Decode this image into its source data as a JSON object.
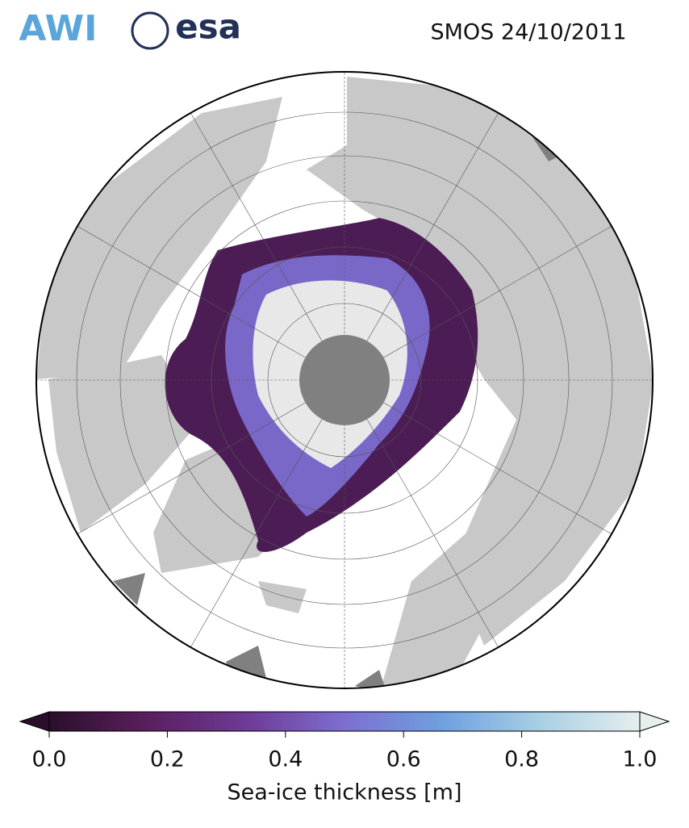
{
  "logos": [
    "AWI",
    "esa"
  ],
  "title": "SMOS 24/10/2011",
  "colorbar": {
    "label": "Sea-ice thickness [m]",
    "clim": [
      0,
      1
    ],
    "ticks": [
      {
        "value": 0,
        "label": "0.0"
      },
      {
        "value": 0.2,
        "label": "0.2"
      },
      {
        "value": 0.4,
        "label": "0.4"
      },
      {
        "value": 0.6,
        "label": "0.6"
      },
      {
        "value": 0.8,
        "label": "0.8"
      },
      {
        "value": 1,
        "label": "1.0"
      }
    ],
    "colormap": [
      "#2a0f2a",
      "#5a1f5e",
      "#6e3a96",
      "#7d6fd0",
      "#6fa0e0",
      "#a9d0e4",
      "#e6eeee"
    ]
  }
}
